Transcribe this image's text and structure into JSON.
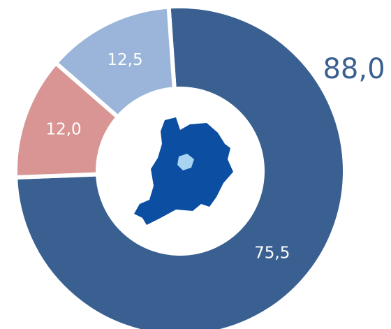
{
  "chart_data": {
    "type": "donut",
    "categories": [
      null,
      null,
      null
    ],
    "values": [
      75.5,
      12.0,
      12.5
    ],
    "value_labels": [
      "75,5",
      "12,0",
      "12,5"
    ],
    "colors": [
      "#3a6091",
      "#d99593",
      "#9ab5d9"
    ],
    "annotation": "88,0"
  }
}
